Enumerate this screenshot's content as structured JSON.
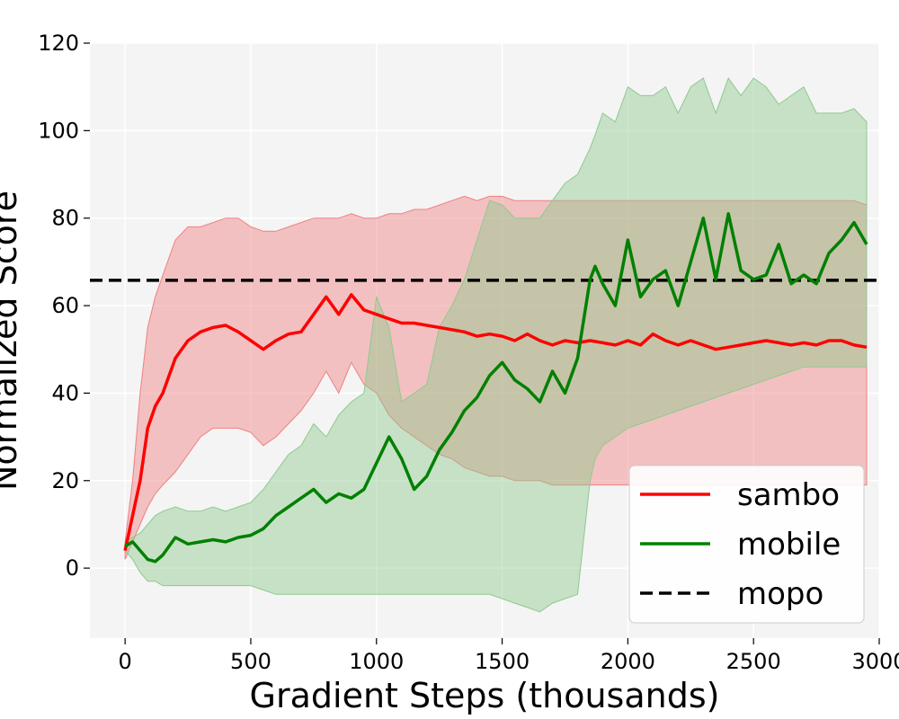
{
  "chart_data": {
    "type": "line",
    "title": "",
    "xlabel": "Gradient Steps (thousands)",
    "ylabel": "Normalized Score",
    "xlim": [
      -140,
      3000
    ],
    "ylim": [
      -16,
      120
    ],
    "xticks": [
      0,
      500,
      1000,
      1500,
      2000,
      2500,
      3000
    ],
    "yticks": [
      0,
      20,
      40,
      60,
      80,
      100,
      120
    ],
    "grid": true,
    "legend_position": "lower-right",
    "background_color": "#f4f4f4",
    "reference_lines": [
      {
        "name": "mopo",
        "y": 65.8,
        "color": "#000000",
        "style": "dashed"
      }
    ],
    "series": [
      {
        "name": "sambo",
        "color": "#ff0000",
        "band_color": "#f08080",
        "x": [
          0,
          30,
          60,
          90,
          120,
          150,
          200,
          250,
          300,
          350,
          400,
          450,
          500,
          550,
          600,
          650,
          700,
          750,
          800,
          850,
          900,
          950,
          1000,
          1050,
          1100,
          1150,
          1200,
          1250,
          1300,
          1350,
          1400,
          1450,
          1500,
          1550,
          1600,
          1650,
          1700,
          1750,
          1800,
          1850,
          1900,
          1950,
          2000,
          2050,
          2100,
          2150,
          2200,
          2250,
          2300,
          2350,
          2400,
          2450,
          2500,
          2550,
          2600,
          2650,
          2700,
          2750,
          2800,
          2850,
          2900,
          2950
        ],
        "mean": [
          4,
          12,
          20,
          32,
          37,
          40,
          48,
          52,
          54,
          55,
          55.5,
          54,
          52,
          50,
          52,
          53.5,
          54,
          58,
          62,
          58,
          62.5,
          59,
          58,
          57,
          56,
          56,
          55.5,
          55,
          54.5,
          54,
          53,
          53.5,
          53,
          52,
          53.5,
          52,
          51,
          52,
          51.5,
          52,
          51.5,
          51,
          52,
          51,
          53.5,
          52,
          51,
          52,
          51,
          50,
          50.5,
          51,
          51.5,
          52,
          51.5,
          51,
          51.5,
          51,
          52,
          52,
          51,
          50.5
        ],
        "upper": [
          6,
          20,
          40,
          55,
          62,
          67,
          75,
          78,
          78,
          79,
          80,
          80,
          78,
          77,
          77,
          78,
          79,
          80,
          80,
          80,
          81,
          80,
          80,
          81,
          81,
          82,
          82,
          83,
          84,
          85,
          84,
          85,
          85,
          84,
          84,
          84,
          84,
          84,
          84,
          84,
          84,
          84,
          84,
          84,
          84,
          84,
          84,
          84,
          84,
          84,
          84,
          84,
          84,
          84,
          84,
          84,
          84,
          84,
          84,
          84,
          84,
          83
        ],
        "lower": [
          2,
          6,
          10,
          14,
          17,
          19,
          22,
          26,
          30,
          32,
          32,
          32,
          31,
          28,
          30,
          33,
          36,
          40,
          45,
          40,
          47,
          42,
          40,
          35,
          32,
          30,
          28,
          26,
          25,
          23,
          22,
          21,
          21,
          20,
          20,
          20,
          19,
          19,
          19,
          19,
          19,
          19,
          19,
          19,
          19,
          19,
          19,
          19,
          19,
          19,
          19,
          19,
          19,
          19,
          19,
          19,
          19,
          19,
          19,
          19,
          19,
          19
        ]
      },
      {
        "name": "mobile",
        "color": "#008000",
        "band_color": "#8fc98f",
        "x": [
          0,
          30,
          60,
          90,
          120,
          150,
          200,
          250,
          300,
          350,
          400,
          450,
          500,
          550,
          600,
          650,
          700,
          750,
          800,
          850,
          900,
          950,
          1000,
          1050,
          1100,
          1150,
          1200,
          1250,
          1300,
          1350,
          1400,
          1450,
          1500,
          1550,
          1600,
          1650,
          1700,
          1750,
          1800,
          1850,
          1870,
          1900,
          1950,
          2000,
          2050,
          2100,
          2150,
          2200,
          2250,
          2300,
          2350,
          2400,
          2450,
          2500,
          2550,
          2600,
          2650,
          2700,
          2750,
          2800,
          2850,
          2900,
          2950
        ],
        "mean": [
          5,
          6,
          4,
          2,
          1.5,
          3,
          7,
          5.5,
          6,
          6.5,
          6,
          7,
          7.5,
          9,
          12,
          14,
          16,
          18,
          15,
          17,
          16,
          18,
          24,
          30,
          25,
          18,
          21,
          27,
          31,
          36,
          39,
          44,
          47,
          43,
          41,
          38,
          45,
          40,
          48,
          66,
          69,
          65,
          60,
          75,
          62,
          66,
          68,
          60,
          70,
          80,
          66,
          81,
          68,
          66,
          67,
          74,
          65,
          67,
          65,
          72,
          75,
          79,
          74
        ],
        "upper": [
          6,
          7,
          8,
          10,
          12,
          13,
          14,
          13,
          13,
          14,
          13,
          14,
          15,
          18,
          22,
          26,
          28,
          33,
          30,
          35,
          38,
          40,
          62,
          55,
          38,
          40,
          42,
          55,
          60,
          66,
          75,
          84,
          83,
          80,
          80,
          80,
          84,
          88,
          90,
          96,
          99,
          104,
          102,
          110,
          108,
          108,
          110,
          104,
          110,
          112,
          104,
          112,
          108,
          112,
          110,
          106,
          108,
          110,
          104,
          104,
          104,
          105,
          102
        ],
        "lower": [
          4,
          2,
          -1,
          -3,
          -3,
          -4,
          -4,
          -4,
          -4,
          -4,
          -4,
          -4,
          -4,
          -5,
          -6,
          -6,
          -6,
          -6,
          -6,
          -6,
          -6,
          -6,
          -6,
          -6,
          -6,
          -6,
          -6,
          -6,
          -6,
          -6,
          -6,
          -6,
          -7,
          -8,
          -9,
          -10,
          -8,
          -7,
          -6,
          20,
          25,
          28,
          30,
          32,
          33,
          34,
          35,
          36,
          37,
          38,
          39,
          40,
          41,
          42,
          43,
          44,
          45,
          46,
          46,
          46,
          46,
          46,
          46
        ]
      }
    ]
  }
}
